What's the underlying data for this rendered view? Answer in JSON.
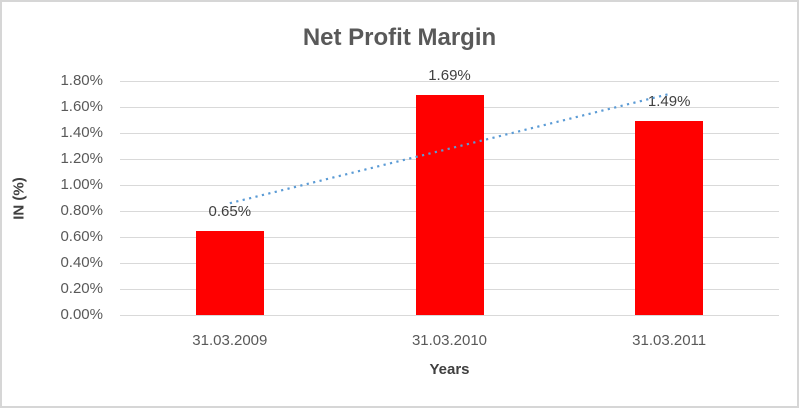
{
  "chart_data": {
    "type": "bar",
    "title": "Net Profit Margin",
    "xlabel": "Years",
    "ylabel": "IN (%)",
    "categories": [
      "31.03.2009",
      "31.03.2010",
      "31.03.2011"
    ],
    "values": [
      0.65,
      1.69,
      1.49
    ],
    "data_labels": [
      "0.65%",
      "1.69%",
      "1.49%"
    ],
    "ylim": [
      0,
      1.8
    ],
    "y_tick_step": 0.2,
    "y_ticks_top_to_bottom": [
      "1.80%",
      "1.60%",
      "1.40%",
      "1.20%",
      "1.00%",
      "0.80%",
      "0.60%",
      "0.40%",
      "0.20%",
      "0.00%"
    ],
    "grid": true,
    "legend": "none",
    "trendline": {
      "style": "dotted",
      "start_value": 0.86,
      "end_value": 1.7
    }
  },
  "colors": {
    "background": "#ffffff",
    "frame_border": "#d6d6d6",
    "gridline": "#d9d9d9",
    "bar_fill": "#ff0000",
    "trendline": "#5b9bd5",
    "tick_text": "#595959",
    "label_text": "#404040",
    "title_text": "#595959"
  }
}
